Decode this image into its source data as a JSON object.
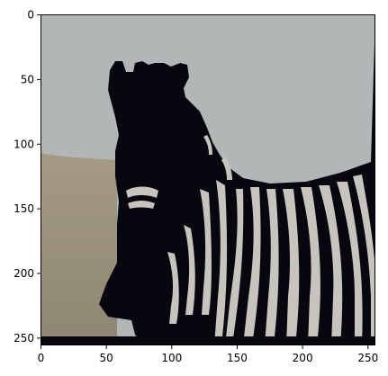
{
  "figure": {
    "kind": "matplotlib-imshow",
    "subject": "zebra",
    "image_extent": {
      "x": [
        0,
        256
      ],
      "y": [
        0,
        256
      ]
    },
    "x_ticks": [
      0,
      50,
      100,
      150,
      200,
      250
    ],
    "y_ticks": [
      0,
      50,
      100,
      150,
      200,
      250
    ],
    "x_tick_labels": [
      "0",
      "50",
      "100",
      "150",
      "200",
      "250"
    ],
    "y_tick_labels": [
      "0",
      "50",
      "100",
      "150",
      "200",
      "250"
    ],
    "colors": {
      "sky": "#b3b6b6",
      "ground": "#a59b85",
      "ground_dark": "#8e8672",
      "zebra_dark": "#06070f",
      "zebra_stripe_light": "#c7c4bd",
      "frame": "#000000"
    }
  }
}
